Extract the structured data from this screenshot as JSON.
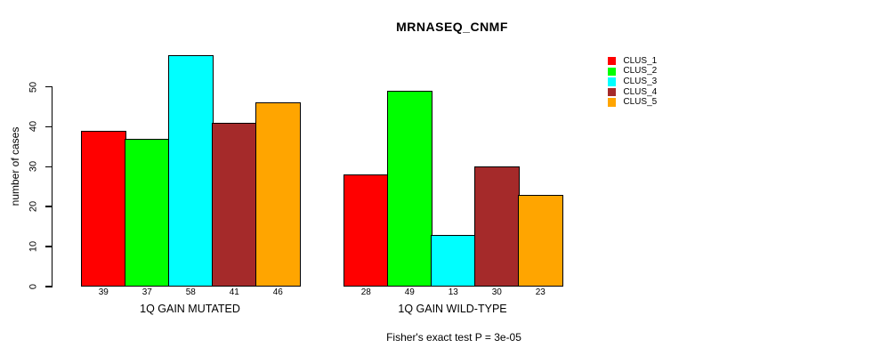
{
  "chart_data": {
    "type": "bar",
    "title": "MRNASEQ_CNMF",
    "xlabel": "",
    "ylabel": "number of cases",
    "categories": [
      "1Q GAIN MUTATED",
      "1Q GAIN WILD-TYPE"
    ],
    "series": [
      {
        "name": "CLUS_1",
        "color": "#FF0000",
        "values": [
          39,
          28
        ]
      },
      {
        "name": "CLUS_2",
        "color": "#00FF00",
        "values": [
          37,
          49
        ]
      },
      {
        "name": "CLUS_3",
        "color": "#00FFFF",
        "values": [
          58,
          13
        ]
      },
      {
        "name": "CLUS_4",
        "color": "#A52A2A",
        "values": [
          41,
          30
        ]
      },
      {
        "name": "CLUS_5",
        "color": "#FFA500",
        "values": [
          46,
          23
        ]
      }
    ],
    "yticks": [
      0,
      10,
      20,
      30,
      40,
      50
    ],
    "ylim": [
      0,
      58
    ],
    "grid": false,
    "bar_value_labels": true,
    "legend_position": "right",
    "annotation": "Fisher's exact test P = 3e-05"
  }
}
